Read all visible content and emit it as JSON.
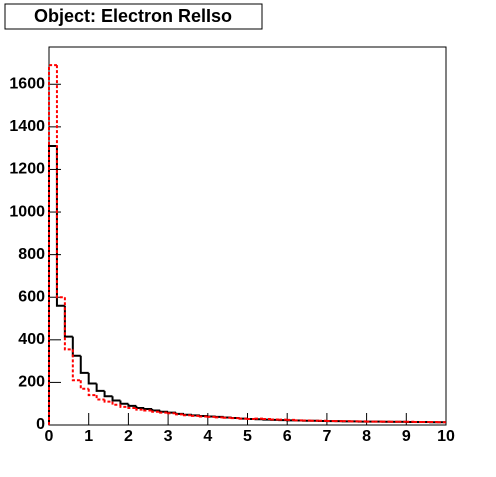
{
  "chart_data": {
    "type": "histogram",
    "title": "Object: Electron RelIso",
    "bins": [
      0,
      0.2,
      0.4,
      0.6,
      0.8,
      1,
      1.2,
      1.4,
      1.6,
      1.8,
      2,
      2.2,
      2.4,
      2.6,
      2.8,
      3,
      3.2,
      3.4,
      3.6,
      3.8,
      4,
      4.2,
      4.4,
      4.6,
      4.8,
      5,
      5.2,
      5.4,
      5.6,
      5.8,
      6,
      6.2,
      6.4,
      6.6,
      6.8,
      7,
      7.2,
      7.4,
      7.6,
      7.8,
      8,
      8.2,
      8.4,
      8.6,
      8.8,
      9,
      9.2,
      9.4,
      9.6,
      9.8,
      10
    ],
    "series": [
      {
        "color": "#000000",
        "line_style": "solid",
        "values": [
          1310,
          560,
          415,
          325,
          245,
          195,
          160,
          135,
          115,
          100,
          90,
          80,
          75,
          68,
          62,
          58,
          52,
          48,
          45,
          42,
          40,
          38,
          35,
          33,
          30,
          28,
          27,
          25,
          24,
          23,
          22,
          21,
          20,
          20,
          19,
          18,
          18,
          17,
          17,
          16,
          16,
          16,
          15,
          15,
          15,
          14,
          14,
          14,
          13,
          13
        ]
      },
      {
        "color": "#ff0000",
        "line_style": "dashed",
        "values": [
          1690,
          600,
          355,
          210,
          170,
          140,
          120,
          110,
          95,
          85,
          80,
          72,
          68,
          62,
          58,
          55,
          50,
          46,
          43,
          40,
          38,
          36,
          34,
          32,
          30,
          28,
          30,
          28,
          26,
          25,
          24,
          22,
          21,
          20,
          20,
          19,
          18,
          18,
          17,
          17,
          16,
          16,
          16,
          15,
          15,
          15,
          14,
          14,
          14,
          13
        ]
      }
    ],
    "xlim": [
      0,
      10
    ],
    "ylim": [
      0,
      1775
    ],
    "xticks": [
      0,
      1,
      2,
      3,
      4,
      5,
      6,
      7,
      8,
      9,
      10
    ],
    "yticks": [
      0,
      200,
      400,
      600,
      800,
      1000,
      1200,
      1400,
      1600
    ]
  }
}
